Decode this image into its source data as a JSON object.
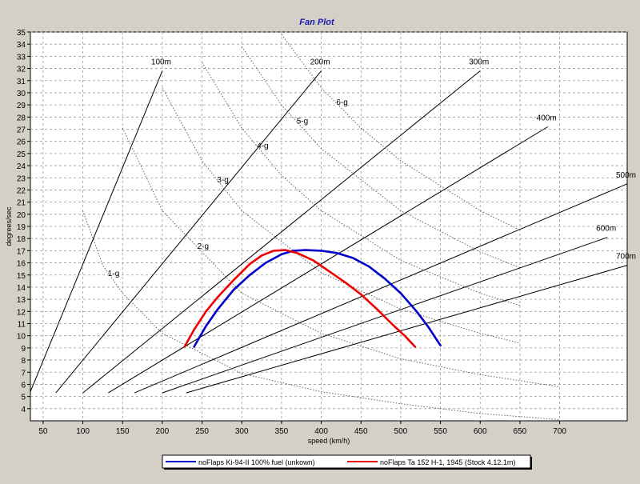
{
  "chart_data": {
    "type": "line",
    "title": "Fan Plot",
    "xlabel": "speed (km/h)",
    "ylabel": "degrees/sec",
    "xlim": [
      34,
      785
    ],
    "ylim": [
      3,
      35
    ],
    "x_ticks": [
      50,
      100,
      150,
      200,
      250,
      300,
      350,
      400,
      450,
      500,
      550,
      600,
      650,
      700
    ],
    "y_ticks": [
      4,
      5,
      6,
      7,
      8,
      9,
      10,
      11,
      12,
      13,
      14,
      15,
      16,
      17,
      18,
      19,
      20,
      21,
      22,
      23,
      24,
      25,
      26,
      27,
      28,
      29,
      30,
      31,
      32,
      33,
      34,
      35
    ],
    "grid": true,
    "legend_position": "bottom",
    "series": [
      {
        "name": "noFlaps Ki-94-II 100% fuel (unkown)",
        "color": "#0000cc",
        "x": [
          240,
          255,
          270,
          290,
          310,
          330,
          350,
          365,
          380,
          400,
          420,
          440,
          460,
          480,
          500,
          520,
          535,
          550
        ],
        "y": [
          9.1,
          10.8,
          12.2,
          13.8,
          15.0,
          16.0,
          16.7,
          17.0,
          17.05,
          17.0,
          16.8,
          16.4,
          15.7,
          14.7,
          13.5,
          12.0,
          10.7,
          9.2
        ]
      },
      {
        "name": "noFlaps Ta 152 H-1, 1945 (Stock 4.12.1m)",
        "color": "#ee0000",
        "x": [
          228,
          240,
          255,
          270,
          290,
          310,
          325,
          340,
          355,
          370,
          390,
          410,
          430,
          450,
          470,
          490,
          505,
          518
        ],
        "y": [
          9.1,
          10.5,
          12.0,
          13.2,
          14.6,
          15.9,
          16.6,
          17.0,
          17.05,
          16.8,
          16.2,
          15.3,
          14.4,
          13.4,
          12.2,
          10.9,
          10.0,
          9.1
        ]
      }
    ],
    "radius_lines": [
      {
        "label": "100m",
        "x": [
          34,
          200
        ],
        "y": [
          5.4,
          31.8
        ]
      },
      {
        "label": "200m",
        "x": [
          66,
          400
        ],
        "y": [
          5.3,
          31.8
        ]
      },
      {
        "label": "300m",
        "x": [
          100,
          600
        ],
        "y": [
          5.3,
          31.8
        ]
      },
      {
        "label": "400m",
        "x": [
          132,
          685
        ],
        "y": [
          5.3,
          27.2
        ]
      },
      {
        "label": "500m",
        "x": [
          165,
          785
        ],
        "y": [
          5.3,
          22.5
        ]
      },
      {
        "label": "600m",
        "x": [
          200,
          760
        ],
        "y": [
          5.3,
          18.1
        ]
      },
      {
        "label": "700m",
        "x": [
          230,
          785
        ],
        "y": [
          5.3,
          15.8
        ]
      }
    ],
    "g_lines": [
      {
        "label": "1-g",
        "x": [
          100,
          125,
          150,
          200,
          300,
          400,
          500,
          600,
          700
        ],
        "y": [
          20.3,
          15.8,
          13.5,
          10.2,
          6.9,
          5.4,
          4.4,
          3.6,
          3.1
        ]
      },
      {
        "label": "2-g",
        "x": [
          150,
          200,
          300,
          400,
          500,
          600,
          700
        ],
        "y": [
          27.1,
          20.3,
          13.5,
          10.2,
          8.1,
          6.8,
          5.8
        ]
      },
      {
        "label": "3-g",
        "x": [
          200,
          250,
          300,
          400,
          500,
          600,
          650
        ],
        "y": [
          30.4,
          24.4,
          20.3,
          15.2,
          12.2,
          10.2,
          9.4
        ]
      },
      {
        "label": "4-g",
        "x": [
          250,
          300,
          350,
          400,
          500,
          600,
          650
        ],
        "y": [
          32.5,
          27.1,
          23.2,
          20.3,
          16.2,
          13.5,
          12.5
        ]
      },
      {
        "label": "5-g",
        "x": [
          300,
          350,
          400,
          500,
          600,
          650
        ],
        "y": [
          33.8,
          29.0,
          25.4,
          20.3,
          16.9,
          15.6
        ]
      },
      {
        "label": "6-g",
        "x": [
          350,
          400,
          450,
          500,
          600,
          650
        ],
        "y": [
          34.8,
          30.4,
          27.1,
          24.4,
          20.3,
          18.7
        ]
      }
    ],
    "annotations": [
      "100m",
      "200m",
      "300m",
      "400m",
      "500m",
      "600m",
      "700m",
      "1-g",
      "2-g",
      "3-g",
      "4-g",
      "5-g",
      "6-g"
    ]
  }
}
